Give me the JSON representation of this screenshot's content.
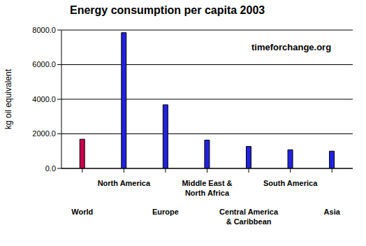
{
  "chart_data": {
    "type": "bar",
    "title": "Energy consumption per capita 2003",
    "y_label": "kg oil equivalent",
    "annotation": "timeforchange.org",
    "categories": [
      "World",
      "North America",
      "Europe",
      "Middle East & North Africa",
      "Central America & Caribbean",
      "South America",
      "Asia"
    ],
    "values": [
      1690,
      7850,
      3680,
      1640,
      1270,
      1080,
      1000
    ],
    "colors": [
      "#c8004e",
      "#2222dd",
      "#2222dd",
      "#2222dd",
      "#2222dd",
      "#2222dd",
      "#2222dd"
    ],
    "ylim": [
      0,
      8000
    ],
    "yticks": [
      {
        "value": 0,
        "label": "0.0"
      },
      {
        "value": 2000,
        "label": "2000.0"
      },
      {
        "value": 4000,
        "label": "4000.0"
      },
      {
        "value": 6000,
        "label": "6000.0"
      },
      {
        "value": 8000,
        "label": "8000.0"
      }
    ],
    "grid": true
  }
}
